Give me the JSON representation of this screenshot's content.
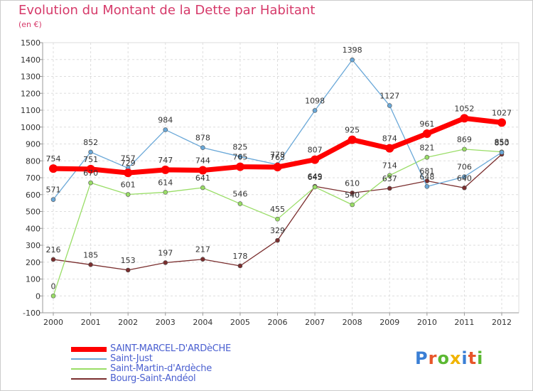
{
  "title": "Evolution du Montant de la Dette par Habitant",
  "subtitle": "(en €)",
  "logo": {
    "text": "Proxiti",
    "letter_colors": [
      "#3a7fd5",
      "#e8562a",
      "#5bb832",
      "#f0b400",
      "#3a7fd5",
      "#e8562a",
      "#5bb832"
    ]
  },
  "chart_data": {
    "type": "line",
    "x": [
      "2000",
      "2001",
      "2002",
      "2003",
      "2004",
      "2005",
      "2006",
      "2007",
      "2008",
      "2009",
      "2010",
      "2011",
      "2012"
    ],
    "ylim": [
      -100,
      1500
    ],
    "yticks": [
      -100,
      0,
      100,
      200,
      300,
      400,
      500,
      600,
      700,
      800,
      900,
      1000,
      1100,
      1200,
      1300,
      1400,
      1500
    ],
    "grid": true,
    "legend_position": "bottom-left",
    "series": [
      {
        "name": "SAINT-MARCEL-D'ARDèCHE",
        "color": "#ff0000",
        "values": [
          754,
          751,
          729,
          747,
          744,
          765,
          763,
          807,
          925,
          874,
          961,
          1052,
          1027
        ],
        "labels": [
          "754",
          "751",
          "729",
          "747",
          "744",
          "765",
          "763",
          "807",
          "925",
          "874",
          "961",
          "1052",
          "1027"
        ]
      },
      {
        "name": "Saint-Just",
        "color": "#6aa8d8",
        "values": [
          571,
          852,
          757,
          984,
          878,
          825,
          778,
          1098,
          1398,
          1127,
          648,
          706,
          850
        ],
        "labels": [
          "571",
          "852",
          "757",
          "984",
          "878",
          "825",
          "778",
          "1098",
          "1398",
          "1127",
          "648",
          "706",
          "850"
        ]
      },
      {
        "name": "Saint-Martin-d'Ardèche",
        "color": "#99dd66",
        "values": [
          0,
          670,
          601,
          614,
          641,
          546,
          455,
          645,
          540,
          714,
          821,
          869,
          853
        ],
        "labels": [
          "0",
          "670",
          "601",
          "614",
          "641",
          "546",
          "455",
          "645",
          "540",
          "714",
          "821",
          "869",
          "853"
        ]
      },
      {
        "name": "Bourg-Saint-Andéol",
        "color": "#7a2e2e",
        "values": [
          216,
          185,
          153,
          197,
          217,
          178,
          329,
          649,
          610,
          637,
          681,
          640,
          839
        ],
        "labels": [
          "216",
          "185",
          "153",
          "197",
          "217",
          "178",
          "329",
          "649",
          "610",
          "637",
          "681",
          "640",
          ""
        ]
      }
    ]
  }
}
